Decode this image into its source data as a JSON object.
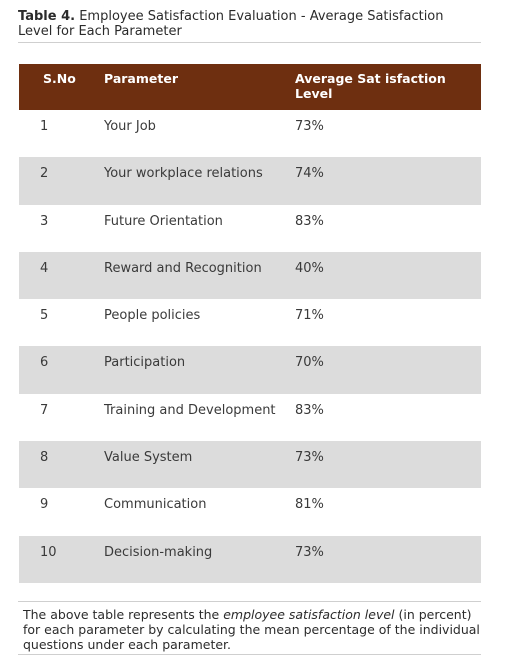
{
  "caption": {
    "label": "Table 4.",
    "text": "Employee Satisfaction Evaluation - Average Satisfaction Level for Each Parameter"
  },
  "table": {
    "header_color": "#6e2f10",
    "stripe_color": "#dcdcdc",
    "headers": [
      "S.No",
      "Parameter",
      "Average Sat isfaction Level"
    ],
    "rows": [
      {
        "sno": "1",
        "parameter": "Your Job",
        "level": "73%"
      },
      {
        "sno": "2",
        "parameter": "Your workplace relations",
        "level": "74%"
      },
      {
        "sno": "3",
        "parameter": "Future Orientation",
        "level": "83%"
      },
      {
        "sno": "4",
        "parameter": "Reward and Recognition",
        "level": "40%"
      },
      {
        "sno": "5",
        "parameter": "People policies",
        "level": "71%"
      },
      {
        "sno": "6",
        "parameter": "Participation",
        "level": "70%"
      },
      {
        "sno": "7",
        "parameter": "Training and Development",
        "level": "83%"
      },
      {
        "sno": "8",
        "parameter": "Value System",
        "level": "73%"
      },
      {
        "sno": "9",
        "parameter": "Communication",
        "level": "81%"
      },
      {
        "sno": "10",
        "parameter": "Decision-making",
        "level": "73%"
      }
    ]
  },
  "note": {
    "before": "The above table represents the ",
    "emphasis": "employee satisfaction level",
    "after": " (in percent) for each parameter by calculating the mean percentage of the individual questions under each parameter."
  }
}
